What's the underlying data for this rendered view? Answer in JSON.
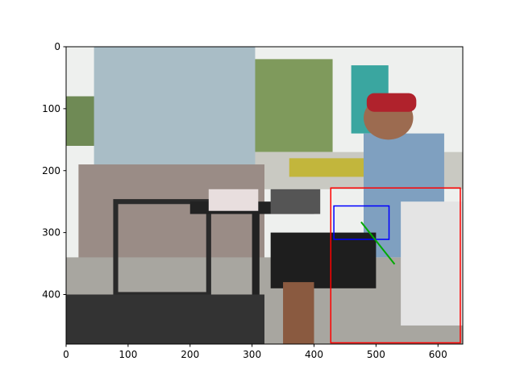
{
  "chart_data": {
    "type": "image",
    "xlim": [
      0,
      640
    ],
    "ylim": [
      480,
      0
    ],
    "xticks": [
      0,
      100,
      200,
      300,
      400,
      500,
      600
    ],
    "yticks": [
      0,
      100,
      200,
      300,
      400
    ],
    "boxes": [
      {
        "color": "#ff0000",
        "x": [
          427,
          636
        ],
        "y": [
          228,
          478
        ]
      },
      {
        "color": "#0000ff",
        "x": [
          432,
          521
        ],
        "y": [
          257,
          311
        ]
      }
    ],
    "lines": [
      {
        "color": "#00aa00",
        "x": [
          476,
          530
        ],
        "y": [
          283,
          351
        ]
      }
    ]
  }
}
